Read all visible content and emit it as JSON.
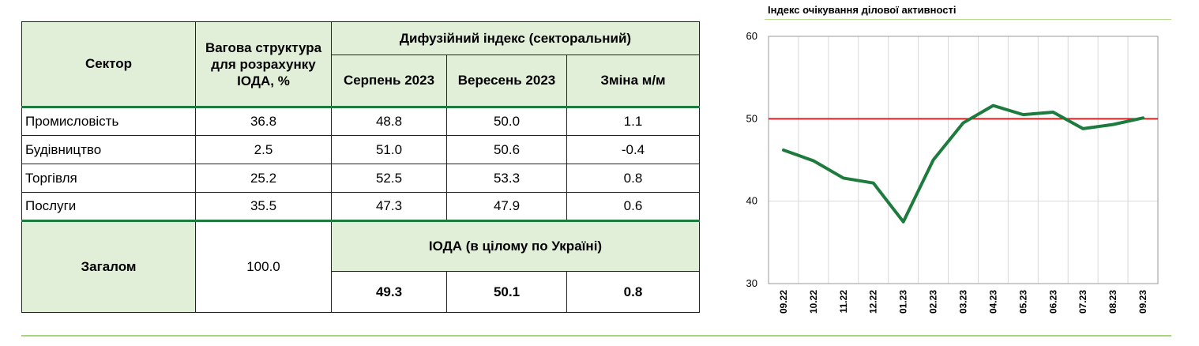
{
  "table": {
    "header": {
      "sector": "Сектор",
      "weight": "Вагова структура для розрахунку ІОДА, %",
      "diffusion": "Дифузійний індекс (секторальний)",
      "aug": "Серпень 2023",
      "sep": "Вересень 2023",
      "change": "Зміна м/м"
    },
    "rows": [
      {
        "sector": "Промисловість",
        "weight": "36.8",
        "aug": "48.8",
        "sep": "50.0",
        "change": "1.1"
      },
      {
        "sector": "Будівництво",
        "weight": "2.5",
        "aug": "51.0",
        "sep": "50.6",
        "change": "-0.4"
      },
      {
        "sector": "Торгівля",
        "weight": "25.2",
        "aug": "52.5",
        "sep": "53.3",
        "change": "0.8"
      },
      {
        "sector": "Послуги",
        "weight": "35.5",
        "aug": "47.3",
        "sep": "47.9",
        "change": "0.6"
      }
    ],
    "total": {
      "label": "Загалом",
      "weight": "100.0",
      "ioda_label": "ІОДА (в цілому по Україні)",
      "aug": "49.3",
      "sep": "50.1",
      "change": "0.8"
    }
  },
  "chart_data": {
    "type": "line",
    "title": "Індекс очікування ділової активності",
    "categories": [
      "09.22",
      "10.22",
      "11.22",
      "12.22",
      "01.23",
      "02.23",
      "03.23",
      "04.23",
      "05.23",
      "06.23",
      "07.23",
      "08.23",
      "09.23"
    ],
    "series": [
      {
        "values": [
          46.2,
          44.9,
          42.8,
          42.2,
          37.5,
          45.0,
          49.5,
          51.6,
          50.5,
          50.8,
          48.8,
          49.3,
          50.1
        ],
        "color": "#1e7b3e"
      }
    ],
    "reference_line": {
      "value": 50,
      "color": "#e31e1e"
    },
    "ylim": [
      30,
      60
    ],
    "yticks": [
      30,
      40,
      50,
      60
    ],
    "grid": true
  }
}
